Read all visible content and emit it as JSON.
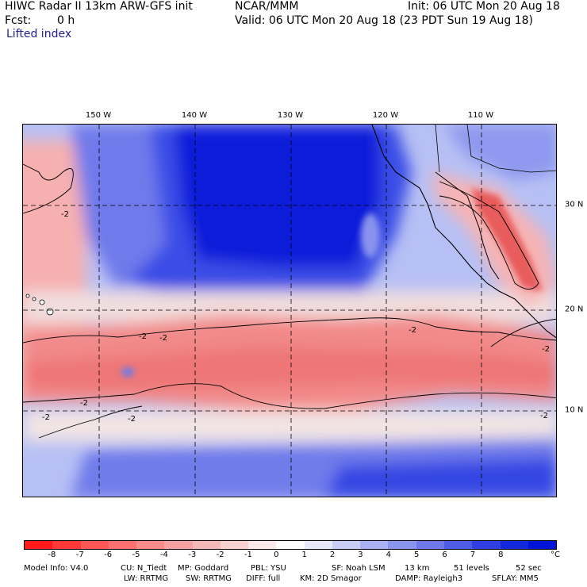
{
  "header": {
    "title": "HIWC Radar II 13km ARW-GFS init",
    "fcst_label": "Fcst:",
    "fcst_value": "0 h",
    "field": "Lifted index",
    "center": "NCAR/MMM",
    "init": "Init: 06 UTC Mon 20 Aug 18",
    "valid": "Valid: 06 UTC Mon 20 Aug 18 (23 PDT Sun 19 Aug 18)"
  },
  "map": {
    "longitude_labels": [
      "150 W",
      "140 W",
      "130 W",
      "120 W",
      "110 W"
    ],
    "latitude_labels": [
      "30 N",
      "20 N",
      "10 N"
    ],
    "contour_label": "-2",
    "gridlines": "dashed"
  },
  "colorbar": {
    "tick_labels": [
      "-8",
      "-7",
      "-6",
      "-5",
      "-4",
      "-3",
      "-2",
      "-1",
      "0",
      "1",
      "2",
      "3",
      "4",
      "5",
      "6",
      "7",
      "8"
    ],
    "unit": "°C",
    "colors": [
      "#ff1a1a",
      "#ff3838",
      "#ff5656",
      "#ff7070",
      "#fb8a8a",
      "#f6a2a2",
      "#f5b8b8",
      "#f7d0d0",
      "#fbe8e8",
      "#ffffff",
      "#e8e8fb",
      "#c8cdf6",
      "#a9b1f2",
      "#8c95ee",
      "#6f79ea",
      "#4f5ce6",
      "#2f3fe2",
      "#1428dc",
      "#0014d8"
    ]
  },
  "footer": {
    "line1": [
      "Model Info: V4.0",
      "CU: N_Tiedt",
      "MP: Goddard",
      "PBL: YSU",
      "SF: Noah LSM",
      "13 km",
      "51 levels",
      "52 sec"
    ],
    "line2": [
      "LW: RRTMG",
      "SW: RRTMG",
      "DIFF: full",
      "KM: 2D Smagor",
      "DAMP: Rayleigh3",
      "SFLAY: MM5"
    ]
  }
}
